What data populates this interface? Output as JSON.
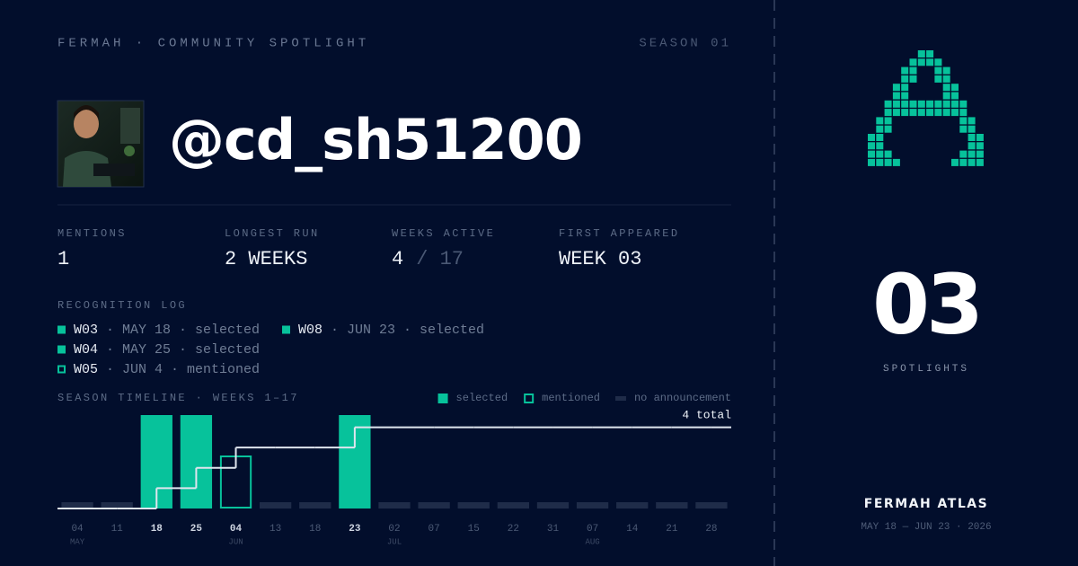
{
  "header": {
    "brand": "FERMAH · COMMUNITY SPOTLIGHT",
    "season": "SEASON 01"
  },
  "profile": {
    "handle": "@cd_sh51200"
  },
  "stats": [
    {
      "label": "MENTIONS",
      "value": "1"
    },
    {
      "label": "LONGEST RUN",
      "value": "2 WEEKS"
    },
    {
      "label": "WEEKS ACTIVE",
      "value": "4",
      "suffix": "/ 17"
    },
    {
      "label": "FIRST APPEARED",
      "value": "WEEK 03"
    }
  ],
  "log": {
    "title": "RECOGNITION LOG",
    "entries": [
      {
        "week": "W03",
        "detail": "· MAY 18 · selected",
        "marker": "filled"
      },
      {
        "week": "W04",
        "detail": "· MAY 25 · selected",
        "marker": "filled"
      },
      {
        "week": "W05",
        "detail": "· JUN 4 · mentioned",
        "marker": "outline"
      },
      {
        "week": "W08",
        "detail": "· JUN 23 · selected",
        "marker": "filled"
      }
    ]
  },
  "chart_data": {
    "type": "bar",
    "title": "SEASON TIMELINE · WEEKS 1–17",
    "legend": [
      {
        "name": "selected",
        "color": "#07c29b",
        "style": "filled"
      },
      {
        "name": "mentioned",
        "color": "#07c29b",
        "style": "outline"
      },
      {
        "name": "no announcement",
        "color": "#1f2c49",
        "style": "dash"
      }
    ],
    "categories": [
      "04",
      "11",
      "18",
      "25",
      "04",
      "13",
      "18",
      "23",
      "02",
      "07",
      "15",
      "22",
      "31",
      "07",
      "14",
      "21",
      "28"
    ],
    "month_labels": [
      "MAY",
      null,
      null,
      null,
      "JUN",
      null,
      null,
      null,
      "JUL",
      null,
      null,
      null,
      null,
      "AUG",
      null,
      null,
      null
    ],
    "status": [
      2,
      2,
      0,
      0,
      1,
      2,
      2,
      0,
      2,
      2,
      2,
      2,
      2,
      2,
      2,
      2,
      2
    ],
    "values": [
      0,
      0,
      1,
      2,
      3,
      3,
      3,
      4,
      4,
      4,
      4,
      4,
      4,
      4,
      4,
      4,
      4
    ],
    "line_color": "#dfe5ee",
    "total_label": "4 total",
    "ylim": [
      0,
      4.6
    ]
  },
  "side": {
    "count": "03",
    "count_label": "SPOTLIGHTS",
    "name": "FERMAH ATLAS",
    "range": "MAY 18 — JUN 23 · 2026"
  }
}
